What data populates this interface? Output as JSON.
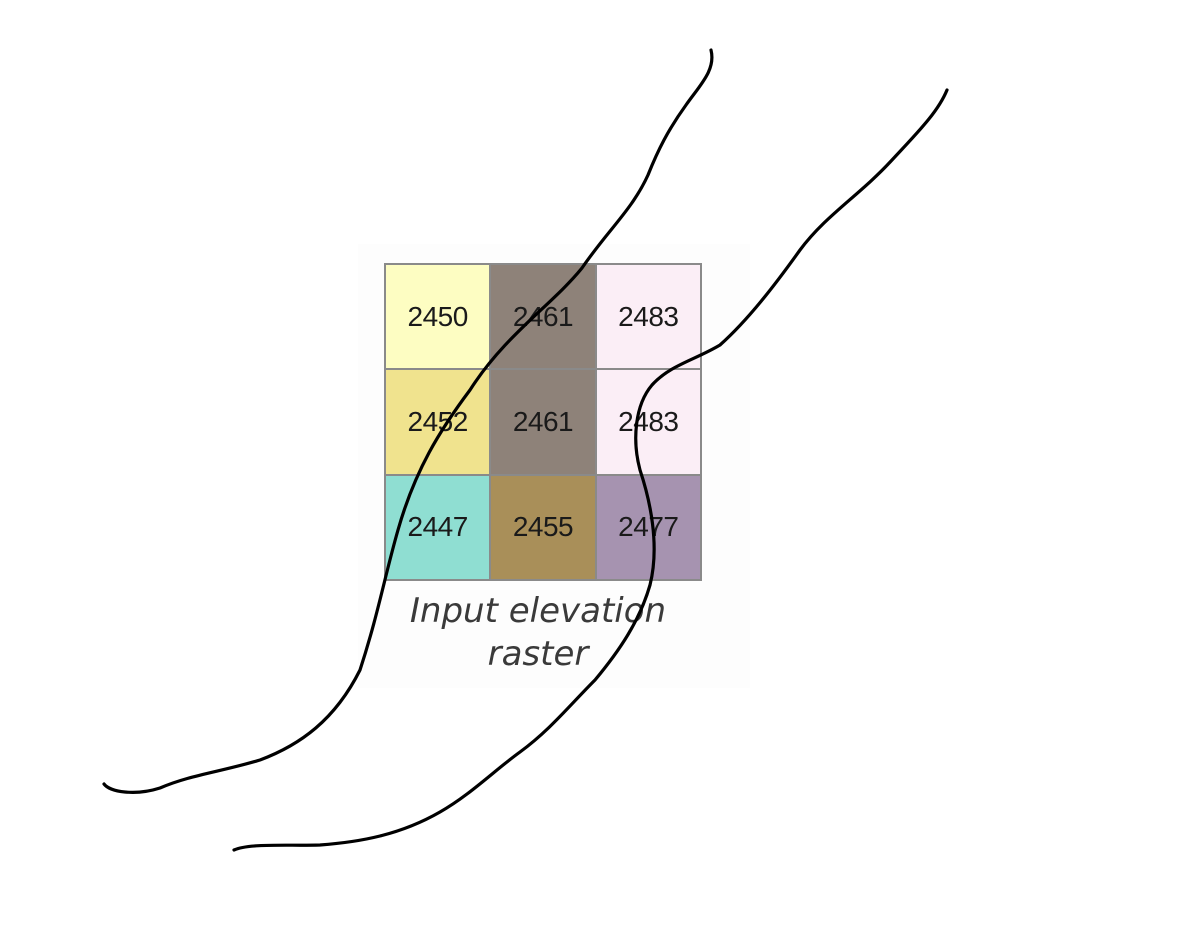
{
  "raster": {
    "rows": [
      [
        {
          "value": "2450",
          "color": "#fdfdc2"
        },
        {
          "value": "2461",
          "color": "#8e8279"
        },
        {
          "value": "2483",
          "color": "#fbeef6"
        }
      ],
      [
        {
          "value": "2452",
          "color": "#f0e38e"
        },
        {
          "value": "2461",
          "color": "#8e8279"
        },
        {
          "value": "2483",
          "color": "#fbeef6"
        }
      ],
      [
        {
          "value": "2447",
          "color": "#8fded2"
        },
        {
          "value": "2455",
          "color": "#a98f59"
        },
        {
          "value": "2477",
          "color": "#a693b0"
        }
      ]
    ]
  },
  "caption": {
    "line1": "Input elevation",
    "line2": "raster"
  },
  "annotation": {
    "stroke_color": "#000000",
    "description_icon": "freehand-stroke"
  }
}
